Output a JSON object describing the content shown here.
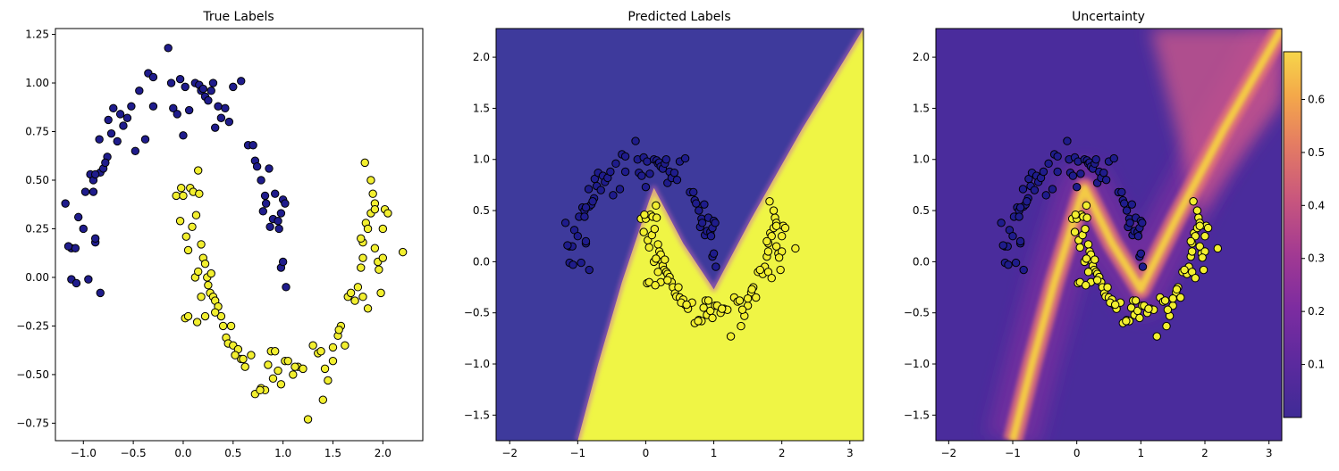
{
  "chart_data": [
    {
      "type": "scatter",
      "title": "True Labels",
      "xlim": [
        -1.28,
        2.4
      ],
      "ylim": [
        -0.84,
        1.28
      ],
      "xticks": [
        -1.0,
        -0.5,
        0.0,
        0.5,
        1.0,
        1.5,
        2.0
      ],
      "xtick_labels": [
        "−1.0",
        "−0.5",
        "0.0",
        "0.5",
        "1.0",
        "1.5",
        "2.0"
      ],
      "yticks": [
        -0.75,
        -0.5,
        -0.25,
        0.0,
        0.25,
        0.5,
        0.75,
        1.0,
        1.25
      ],
      "ytick_labels": [
        "−0.75",
        "−0.50",
        "−0.25",
        "0.00",
        "0.25",
        "0.50",
        "0.75",
        "1.00",
        "1.25"
      ],
      "series": [
        {
          "color": "#1f1c8c",
          "points": [
            [
              -1.18,
              0.38
            ],
            [
              -1.12,
              0.15
            ],
            [
              -1.08,
              0.15
            ],
            [
              -1.05,
              0.31
            ],
            [
              -1.0,
              0.25
            ],
            [
              -0.98,
              0.44
            ],
            [
              -0.93,
              0.53
            ],
            [
              -0.9,
              0.5
            ],
            [
              -0.88,
              0.18
            ],
            [
              -0.88,
              0.2
            ],
            [
              -0.84,
              0.71
            ],
            [
              -0.83,
              0.54
            ],
            [
              -0.8,
              0.56
            ],
            [
              -0.76,
              0.62
            ],
            [
              -0.75,
              0.81
            ],
            [
              -0.72,
              0.74
            ],
            [
              -0.7,
              0.87
            ],
            [
              -0.63,
              0.84
            ],
            [
              -0.6,
              0.78
            ],
            [
              -0.56,
              0.82
            ],
            [
              -0.52,
              0.88
            ],
            [
              -0.48,
              0.65
            ],
            [
              -0.44,
              0.96
            ],
            [
              -0.38,
              0.71
            ],
            [
              -0.35,
              1.05
            ],
            [
              -0.3,
              1.03
            ],
            [
              -0.3,
              0.88
            ],
            [
              -0.15,
              1.18
            ],
            [
              -0.12,
              1.0
            ],
            [
              -0.1,
              0.87
            ],
            [
              -0.06,
              0.84
            ],
            [
              -0.03,
              1.02
            ],
            [
              0.0,
              0.73
            ],
            [
              0.02,
              0.98
            ],
            [
              0.06,
              0.86
            ],
            [
              0.12,
              1.0
            ],
            [
              0.16,
              0.99
            ],
            [
              0.18,
              0.96
            ],
            [
              0.2,
              0.97
            ],
            [
              0.22,
              0.93
            ],
            [
              0.25,
              0.91
            ],
            [
              0.28,
              0.96
            ],
            [
              0.3,
              1.0
            ],
            [
              0.32,
              0.77
            ],
            [
              0.35,
              0.88
            ],
            [
              0.38,
              0.82
            ],
            [
              0.42,
              0.87
            ],
            [
              0.46,
              0.8
            ],
            [
              0.5,
              0.98
            ],
            [
              0.58,
              1.01
            ],
            [
              0.65,
              0.68
            ],
            [
              0.7,
              0.68
            ],
            [
              0.72,
              0.6
            ],
            [
              0.74,
              0.57
            ],
            [
              0.78,
              0.5
            ],
            [
              0.8,
              0.34
            ],
            [
              0.82,
              0.42
            ],
            [
              0.83,
              0.38
            ],
            [
              0.86,
              0.56
            ],
            [
              0.87,
              0.26
            ],
            [
              0.9,
              0.3
            ],
            [
              0.92,
              0.43
            ],
            [
              0.95,
              0.29
            ],
            [
              0.96,
              0.25
            ],
            [
              0.98,
              0.33
            ],
            [
              1.0,
              0.4
            ],
            [
              1.02,
              0.38
            ],
            [
              0.98,
              0.05
            ],
            [
              1.0,
              0.08
            ],
            [
              1.03,
              -0.05
            ],
            [
              -1.15,
              0.16
            ],
            [
              -1.12,
              -0.01
            ],
            [
              -1.07,
              -0.03
            ],
            [
              -0.95,
              -0.01
            ],
            [
              -0.83,
              -0.08
            ],
            [
              -0.88,
              0.53
            ],
            [
              -0.9,
              0.44
            ],
            [
              -0.78,
              0.59
            ],
            [
              -0.66,
              0.7
            ]
          ]
        },
        {
          "color": "#f2ef2f",
          "points": [
            [
              -0.07,
              0.42
            ],
            [
              -0.03,
              0.29
            ],
            [
              0.0,
              0.42
            ],
            [
              0.03,
              0.21
            ],
            [
              0.07,
              0.46
            ],
            [
              0.09,
              0.26
            ],
            [
              0.1,
              0.44
            ],
            [
              0.13,
              0.32
            ],
            [
              0.15,
              0.55
            ],
            [
              0.16,
              0.43
            ],
            [
              0.18,
              0.17
            ],
            [
              0.2,
              0.1
            ],
            [
              0.22,
              0.07
            ],
            [
              0.24,
              0.0
            ],
            [
              0.25,
              -0.04
            ],
            [
              0.27,
              -0.08
            ],
            [
              0.3,
              -0.1
            ],
            [
              0.32,
              -0.12
            ],
            [
              0.35,
              -0.15
            ],
            [
              0.38,
              -0.2
            ],
            [
              0.4,
              -0.25
            ],
            [
              0.43,
              -0.31
            ],
            [
              0.45,
              -0.34
            ],
            [
              0.48,
              -0.25
            ],
            [
              0.5,
              -0.35
            ],
            [
              0.55,
              -0.37
            ],
            [
              0.58,
              -0.42
            ],
            [
              0.62,
              -0.46
            ],
            [
              0.68,
              -0.4
            ],
            [
              0.72,
              -0.6
            ],
            [
              0.78,
              -0.57
            ],
            [
              0.82,
              -0.58
            ],
            [
              0.85,
              -0.45
            ],
            [
              0.88,
              -0.38
            ],
            [
              0.9,
              -0.52
            ],
            [
              0.95,
              -0.48
            ],
            [
              0.98,
              -0.55
            ],
            [
              1.02,
              -0.43
            ],
            [
              1.05,
              -0.43
            ],
            [
              1.1,
              -0.5
            ],
            [
              1.15,
              -0.46
            ],
            [
              1.2,
              -0.47
            ],
            [
              1.25,
              -0.73
            ],
            [
              1.3,
              -0.35
            ],
            [
              1.35,
              -0.39
            ],
            [
              1.4,
              -0.63
            ],
            [
              1.45,
              -0.53
            ],
            [
              1.5,
              -0.43
            ],
            [
              1.55,
              -0.3
            ],
            [
              1.58,
              -0.25
            ],
            [
              1.62,
              -0.35
            ],
            [
              1.65,
              -0.1
            ],
            [
              1.72,
              -0.12
            ],
            [
              1.75,
              -0.05
            ],
            [
              1.78,
              0.05
            ],
            [
              1.8,
              0.18
            ],
            [
              1.83,
              0.28
            ],
            [
              1.85,
              0.25
            ],
            [
              1.88,
              0.33
            ],
            [
              1.9,
              0.43
            ],
            [
              1.92,
              0.15
            ],
            [
              1.95,
              0.08
            ],
            [
              1.98,
              -0.08
            ],
            [
              2.0,
              0.25
            ],
            [
              2.02,
              0.35
            ],
            [
              2.05,
              0.33
            ],
            [
              2.2,
              0.13
            ],
            [
              1.82,
              0.59
            ],
            [
              1.88,
              0.5
            ],
            [
              1.92,
              0.38
            ],
            [
              -0.02,
              0.46
            ],
            [
              0.05,
              0.14
            ],
            [
              0.12,
              0.0
            ],
            [
              0.15,
              0.03
            ],
            [
              0.18,
              -0.1
            ],
            [
              0.22,
              -0.2
            ],
            [
              0.28,
              0.02
            ],
            [
              0.02,
              -0.21
            ],
            [
              0.05,
              -0.2
            ],
            [
              0.14,
              -0.23
            ],
            [
              0.32,
              -0.18
            ],
            [
              0.52,
              -0.4
            ],
            [
              0.6,
              -0.42
            ],
            [
              0.77,
              -0.58
            ],
            [
              0.92,
              -0.38
            ],
            [
              1.12,
              -0.46
            ],
            [
              1.38,
              -0.38
            ],
            [
              1.42,
              -0.47
            ],
            [
              1.5,
              -0.36
            ],
            [
              1.56,
              -0.27
            ],
            [
              1.68,
              -0.08
            ],
            [
              1.78,
              0.2
            ],
            [
              1.8,
              0.1
            ],
            [
              1.92,
              0.35
            ],
            [
              2.0,
              0.1
            ],
            [
              1.96,
              0.04
            ],
            [
              1.8,
              -0.1
            ],
            [
              1.85,
              -0.16
            ]
          ]
        }
      ]
    },
    {
      "type": "heatmap",
      "title": "Predicted Labels",
      "xlim": [
        -2.2,
        3.2
      ],
      "ylim": [
        -1.75,
        2.28
      ],
      "xticks": [
        -2,
        -1,
        0,
        1,
        2,
        3
      ],
      "xtick_labels": [
        "−2",
        "−1",
        "0",
        "1",
        "2",
        "3"
      ],
      "yticks": [
        -1.5,
        -1.0,
        -0.5,
        0.0,
        0.5,
        1.0,
        1.5,
        2.0
      ],
      "ytick_labels": [
        "−1.5",
        "−1.0",
        "−0.5",
        "0.0",
        "0.5",
        "1.0",
        "1.5",
        "2.0"
      ],
      "background_colors": {
        "class_0": "#3e3a9c",
        "class_1": "#eff545"
      },
      "boundary_points": [
        [
          -1.0,
          -1.75
        ],
        [
          -0.7,
          -1.0
        ],
        [
          -0.35,
          -0.2
        ],
        [
          0.05,
          0.6
        ],
        [
          0.12,
          0.72
        ],
        [
          0.55,
          0.18
        ],
        [
          1.0,
          -0.27
        ],
        [
          1.55,
          0.42
        ],
        [
          2.3,
          1.3
        ],
        [
          3.2,
          2.28
        ]
      ]
    },
    {
      "type": "heatmap",
      "title": "Uncertainty",
      "xlim": [
        -2.2,
        3.2
      ],
      "ylim": [
        -1.75,
        2.28
      ],
      "xticks": [
        -2,
        -1,
        0,
        1,
        2,
        3
      ],
      "xtick_labels": [
        "−2",
        "−1",
        "0",
        "1",
        "2",
        "3"
      ],
      "yticks": [
        -1.5,
        -1.0,
        -0.5,
        0.0,
        0.5,
        1.0,
        1.5,
        2.0
      ],
      "ytick_labels": [
        "−1.5",
        "−1.0",
        "−0.5",
        "0.0",
        "0.5",
        "1.0",
        "1.5",
        "2.0"
      ],
      "colormap": "plasma",
      "colorbar_range": [
        0.0,
        0.69
      ],
      "colorbar_ticks": [
        0.1,
        0.2,
        0.3,
        0.4,
        0.5,
        0.6
      ],
      "colorbar_tick_labels": [
        "0.1",
        "0.2",
        "0.3",
        "0.4",
        "0.5",
        "0.6"
      ],
      "low_color": "#4a2c9c",
      "high_color": "#f6d040"
    }
  ]
}
